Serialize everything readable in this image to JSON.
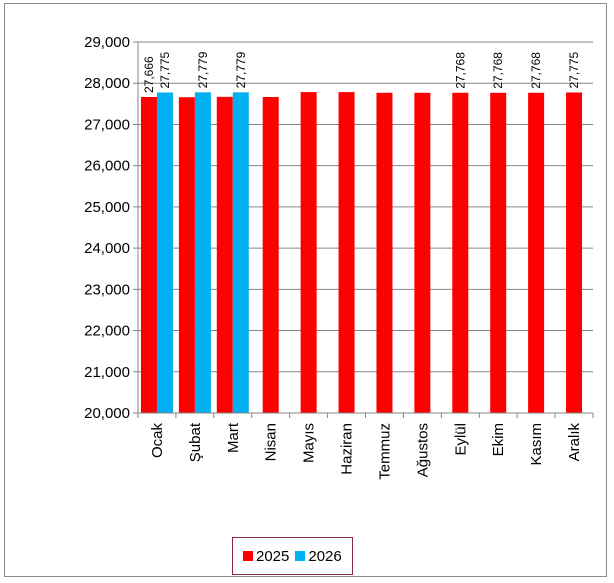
{
  "chart_data": {
    "type": "bar",
    "categories": [
      "Ocak",
      "Şubat",
      "Mart",
      "Nisan",
      "Mayıs",
      "Haziran",
      "Temmuz",
      "Ağustos",
      "Eylül",
      "Ekim",
      "Kasım",
      "Aralık"
    ],
    "series": [
      {
        "name": "2025",
        "color": "#ff0000",
        "values": [
          27666,
          27660,
          27670,
          27666,
          27785,
          27785,
          27768,
          27768,
          27768,
          27768,
          27768,
          27775
        ],
        "labels": [
          "27,666",
          "",
          "",
          "",
          "",
          "",
          "",
          "",
          "27,768",
          "27,768",
          "27,768",
          "27,775"
        ]
      },
      {
        "name": "2026",
        "color": "#00b0f0",
        "values": [
          27775,
          27779,
          27779,
          null,
          null,
          null,
          null,
          null,
          null,
          null,
          null,
          null
        ],
        "labels": [
          "27,775",
          "27,779",
          "27,779",
          "",
          "",
          "",
          "",
          "",
          "",
          "",
          "",
          ""
        ]
      }
    ],
    "yticks": [
      "20,000",
      "21,000",
      "22,000",
      "23,000",
      "24,000",
      "25,000",
      "26,000",
      "27,000",
      "28,000",
      "29,000"
    ],
    "ylim": [
      20000,
      29000
    ],
    "grid": true,
    "legend": "bottom"
  }
}
